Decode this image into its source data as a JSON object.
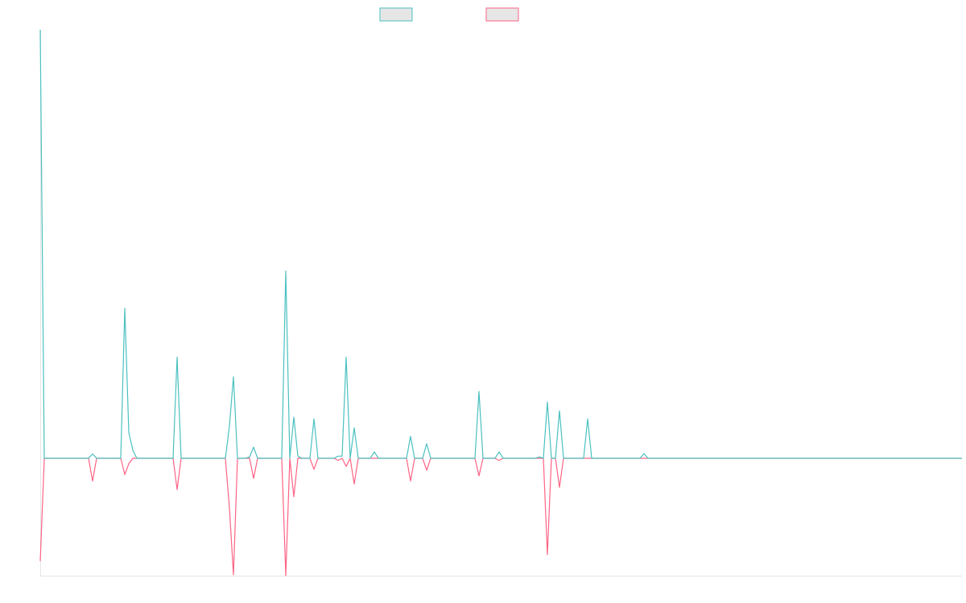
{
  "chart_data": {
    "type": "line",
    "categories": [
      null,
      null,
      null,
      null,
      null,
      null,
      null,
      null,
      null,
      null,
      null,
      null,
      null,
      null,
      null,
      null,
      null,
      null,
      null,
      null,
      null,
      null,
      null,
      null,
      null,
      null,
      null,
      null,
      null,
      null,
      null,
      null,
      null,
      null,
      null,
      null,
      null,
      null,
      null,
      null,
      null,
      null,
      null,
      null,
      null,
      null,
      null,
      null,
      null,
      null,
      null,
      null,
      null,
      null,
      null,
      null,
      null,
      null,
      null,
      null,
      null,
      null,
      null,
      null,
      null,
      null,
      null,
      null,
      null,
      null,
      null,
      null,
      null,
      null,
      null,
      null,
      null,
      null,
      null,
      null,
      null,
      null,
      null,
      null,
      null,
      null,
      null,
      null,
      null,
      null,
      null,
      null,
      null,
      null,
      null,
      null,
      null,
      null,
      null,
      null,
      null,
      null,
      null,
      null,
      null,
      null,
      null,
      null,
      null,
      null,
      null,
      null,
      null,
      null,
      null,
      null,
      null,
      null,
      null,
      null,
      null,
      null,
      null,
      null,
      null,
      null,
      null,
      null,
      null,
      null,
      null,
      null,
      null,
      null,
      null,
      null,
      null,
      null,
      null,
      null,
      null,
      null,
      null,
      null,
      null,
      null,
      null,
      null,
      null,
      null,
      null,
      null,
      null,
      null,
      null,
      null,
      null,
      null,
      null,
      null,
      null,
      null,
      null,
      null,
      null,
      null,
      null,
      null,
      null,
      null,
      null,
      null,
      null,
      null,
      null,
      null,
      null,
      null,
      null,
      null,
      null,
      null,
      null,
      null,
      null,
      null,
      null,
      null,
      null,
      null,
      null,
      null,
      null,
      null,
      null,
      null,
      null,
      null,
      null,
      null,
      null,
      null,
      null,
      null,
      null,
      null,
      null,
      null,
      null,
      null,
      null,
      null,
      null,
      null,
      null,
      null,
      null,
      null,
      null,
      null,
      null,
      null,
      null,
      null,
      null,
      null,
      null,
      null,
      null,
      null
    ],
    "series": [
      {
        "color": "#ff6384",
        "values": [
          -24,
          0,
          0,
          0,
          0,
          0,
          0,
          0,
          0,
          0,
          0,
          0,
          0,
          -5.3,
          0,
          0,
          0,
          0,
          0,
          0,
          0,
          -3.8,
          -1.3,
          0,
          0,
          0,
          0,
          0,
          0,
          0,
          0,
          0,
          0,
          0,
          -7.3,
          0,
          0,
          0,
          0,
          0,
          0,
          0,
          0,
          0,
          0,
          0,
          0,
          -11.6,
          -27.2,
          0,
          0,
          0,
          0,
          -4.7,
          0,
          0,
          0,
          0,
          0,
          0,
          0,
          -27.4,
          0,
          -9,
          0,
          0,
          0,
          0,
          -2.6,
          0,
          0,
          0,
          0,
          0,
          -0.5,
          0,
          -1.9,
          0,
          -6,
          0,
          0,
          0,
          0,
          0,
          0,
          0,
          0,
          0,
          0,
          0,
          0,
          0,
          -5.3,
          0,
          0,
          0,
          -2.8,
          0,
          0,
          0,
          0,
          0,
          0,
          0,
          0,
          0,
          0,
          0,
          0,
          -4.1,
          0,
          0,
          0,
          0,
          -0.5,
          0,
          0,
          0,
          0,
          0,
          0,
          0,
          0,
          0,
          0,
          0,
          -22.5,
          0,
          0,
          -6.8,
          0,
          0,
          0,
          0,
          0,
          0,
          0,
          0,
          0,
          0,
          0,
          0,
          0,
          0,
          0,
          0,
          0,
          0,
          0,
          0,
          0,
          0,
          0,
          0,
          0,
          0,
          0,
          0,
          0,
          0,
          0,
          0,
          0,
          0,
          0,
          0,
          0,
          0,
          0,
          0,
          0,
          0,
          0,
          0,
          0,
          0,
          0,
          0,
          0,
          0,
          0,
          0,
          0,
          0,
          0,
          0,
          0,
          0,
          0,
          0,
          0,
          0,
          0,
          0,
          0,
          0,
          0,
          0,
          0,
          0,
          0,
          0,
          0,
          0,
          0,
          0,
          0,
          0,
          0,
          0,
          0,
          0,
          0,
          0,
          0,
          0,
          0,
          0,
          0,
          0,
          0,
          0,
          0,
          0,
          0,
          0,
          0,
          0,
          0,
          0
        ]
      },
      {
        "color": "#4bc0c0",
        "values": [
          100,
          0,
          0,
          0,
          0,
          0,
          0,
          0,
          0,
          0,
          0,
          0,
          0,
          1,
          0,
          0,
          0,
          0,
          0,
          0,
          0,
          35,
          6,
          1.9,
          0,
          0,
          0,
          0,
          0,
          0,
          0,
          0,
          0,
          0,
          23.6,
          0,
          0,
          0,
          0,
          0,
          0,
          0,
          0,
          0,
          0,
          0,
          0,
          7.5,
          19,
          0,
          0,
          0,
          0.3,
          2.6,
          0,
          0,
          0,
          0,
          0,
          0,
          0,
          43.7,
          0,
          9.6,
          0.5,
          0,
          0,
          0,
          9.2,
          0,
          0,
          0,
          0,
          0,
          0.5,
          0.5,
          23.6,
          0,
          7.1,
          0,
          0,
          0,
          0,
          1.5,
          0,
          0,
          0,
          0,
          0,
          0,
          0,
          0,
          5.1,
          0,
          0,
          0,
          3.4,
          0,
          0,
          0,
          0,
          0,
          0,
          0,
          0,
          0,
          0,
          0,
          0,
          15.6,
          0,
          0,
          0,
          0,
          1.5,
          0,
          0,
          0,
          0,
          0,
          0,
          0,
          0,
          0,
          0.3,
          0,
          13.1,
          0,
          0,
          11.1,
          0,
          0,
          0,
          0,
          0,
          0,
          9.2,
          0,
          0,
          0,
          0,
          0,
          0,
          0,
          0,
          0,
          0,
          0,
          0,
          0,
          1.1,
          0,
          0,
          0,
          0,
          0,
          0,
          0,
          0,
          0,
          0,
          0,
          0,
          0,
          0,
          0,
          0,
          0,
          0,
          0,
          0,
          0,
          0,
          0,
          0,
          0,
          0,
          0,
          0,
          0,
          0,
          0,
          0,
          0,
          0,
          0,
          0,
          0,
          0,
          0,
          0,
          0,
          0,
          0,
          0,
          0,
          0,
          0,
          0,
          0,
          0,
          0,
          0,
          0,
          0,
          0,
          0,
          0,
          0,
          0,
          0,
          0,
          0,
          0,
          0,
          0,
          0,
          0,
          0,
          0,
          0,
          0,
          0,
          0,
          0,
          0,
          0,
          0,
          0,
          0
        ]
      }
    ],
    "ylim": [
      -27.4,
      100
    ]
  }
}
